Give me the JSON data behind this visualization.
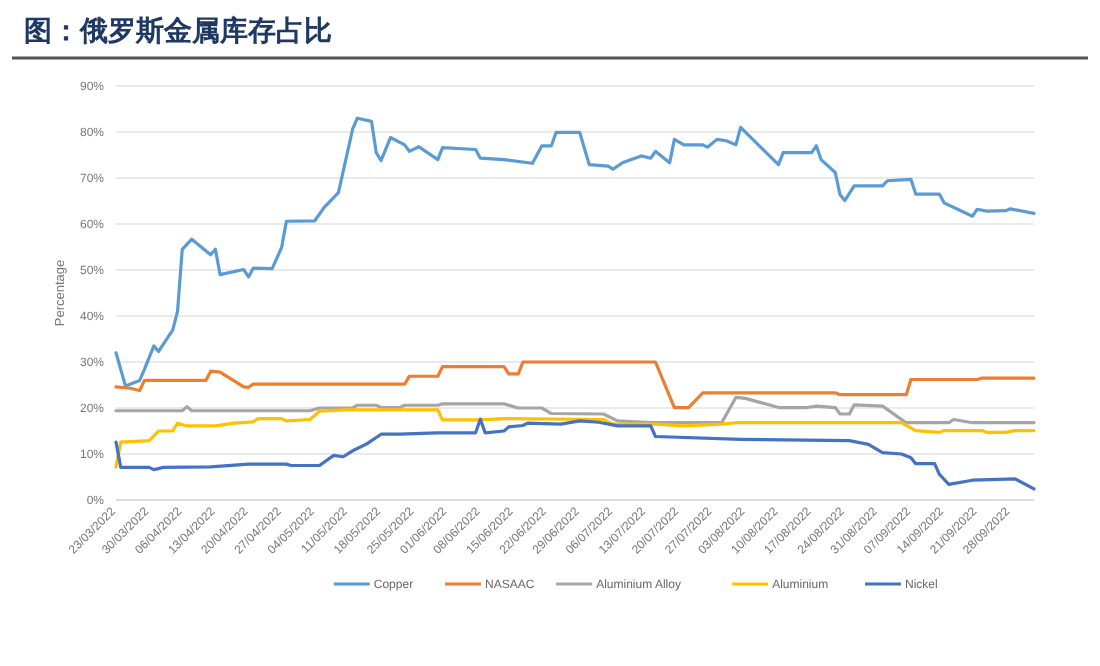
{
  "chart_data": {
    "type": "line",
    "title": "图：俄罗斯金属库存占比",
    "ylabel": "Percentage",
    "xlim": [
      "2022-03-23",
      "2022-10-03"
    ],
    "xticks": [
      {
        "value": "2022-03-23",
        "label": "23/03/2022"
      },
      {
        "value": "2022-03-30",
        "label": "30/03/2022"
      },
      {
        "value": "2022-04-06",
        "label": "06/04/2022"
      },
      {
        "value": "2022-04-13",
        "label": "13/04/2022"
      },
      {
        "value": "2022-04-20",
        "label": "20/04/2022"
      },
      {
        "value": "2022-04-27",
        "label": "27/04/2022"
      },
      {
        "value": "2022-05-04",
        "label": "04/05/2022"
      },
      {
        "value": "2022-05-11",
        "label": "11/05/2022"
      },
      {
        "value": "2022-05-18",
        "label": "18/05/2022"
      },
      {
        "value": "2022-05-25",
        "label": "25/05/2022"
      },
      {
        "value": "2022-06-01",
        "label": "01/06/2022"
      },
      {
        "value": "2022-06-08",
        "label": "08/06/2022"
      },
      {
        "value": "2022-06-15",
        "label": "15/06/2022"
      },
      {
        "value": "2022-06-22",
        "label": "22/06/2022"
      },
      {
        "value": "2022-06-29",
        "label": "29/06/2022"
      },
      {
        "value": "2022-07-06",
        "label": "06/07/2022"
      },
      {
        "value": "2022-07-13",
        "label": "13/07/2022"
      },
      {
        "value": "2022-07-20",
        "label": "20/07/2022"
      },
      {
        "value": "2022-07-27",
        "label": "27/07/2022"
      },
      {
        "value": "2022-08-03",
        "label": "03/08/2022"
      },
      {
        "value": "2022-08-10",
        "label": "10/08/2022"
      },
      {
        "value": "2022-08-17",
        "label": "17/08/2022"
      },
      {
        "value": "2022-08-24",
        "label": "24/08/2022"
      },
      {
        "value": "2022-08-31",
        "label": "31/08/2022"
      },
      {
        "value": "2022-09-07",
        "label": "07/09/2022"
      },
      {
        "value": "2022-09-14",
        "label": "14/09/2022"
      },
      {
        "value": "2022-09-21",
        "label": "21/09/2022"
      },
      {
        "value": "2022-09-28",
        "label": "28/09/2022"
      }
    ],
    "ylim": [
      0,
      90
    ],
    "yticks": [
      {
        "value": 0,
        "label": "0%"
      },
      {
        "value": 10,
        "label": "10%"
      },
      {
        "value": 20,
        "label": "20%"
      },
      {
        "value": 30,
        "label": "30%"
      },
      {
        "value": 40,
        "label": "40%"
      },
      {
        "value": 50,
        "label": "50%"
      },
      {
        "value": 60,
        "label": "60%"
      },
      {
        "value": 70,
        "label": "70%"
      },
      {
        "value": 80,
        "label": "80%"
      },
      {
        "value": 90,
        "label": "90%"
      }
    ],
    "grid": "y",
    "legend": "bottom",
    "marker": "none",
    "line_style": "solid",
    "series": [
      {
        "name": "Copper",
        "color": "#5b9bd5",
        "x": [
          "2022-03-23",
          "2022-03-25",
          "2022-03-28",
          "2022-03-29",
          "2022-03-31",
          "2022-04-01",
          "2022-04-04",
          "2022-04-05",
          "2022-04-06",
          "2022-04-08",
          "2022-04-12",
          "2022-04-13",
          "2022-04-14",
          "2022-04-19",
          "2022-04-20",
          "2022-04-21",
          "2022-04-25",
          "2022-04-27",
          "2022-04-28",
          "2022-05-04",
          "2022-05-06",
          "2022-05-09",
          "2022-05-12",
          "2022-05-13",
          "2022-05-16",
          "2022-05-17",
          "2022-05-18",
          "2022-05-20",
          "2022-05-23",
          "2022-05-24",
          "2022-05-26",
          "2022-05-30",
          "2022-05-31",
          "2022-06-07",
          "2022-06-08",
          "2022-06-13",
          "2022-06-19",
          "2022-06-21",
          "2022-06-23",
          "2022-06-24",
          "2022-06-29",
          "2022-07-01",
          "2022-07-05",
          "2022-07-06",
          "2022-07-08",
          "2022-07-12",
          "2022-07-14",
          "2022-07-15",
          "2022-07-18",
          "2022-07-19",
          "2022-07-21",
          "2022-07-25",
          "2022-07-26",
          "2022-07-28",
          "2022-07-30",
          "2022-08-01",
          "2022-08-02",
          "2022-08-10",
          "2022-08-11",
          "2022-08-17",
          "2022-08-18",
          "2022-08-19",
          "2022-08-22",
          "2022-08-23",
          "2022-08-24",
          "2022-08-26",
          "2022-09-01",
          "2022-09-02",
          "2022-09-07",
          "2022-09-08",
          "2022-09-13",
          "2022-09-14",
          "2022-09-20",
          "2022-09-21",
          "2022-09-23",
          "2022-09-27",
          "2022-09-28",
          "2022-10-03"
        ],
        "values": [
          32,
          24.8,
          26,
          28.4,
          33.5,
          32.3,
          37,
          41,
          54.5,
          56.7,
          53.3,
          54.5,
          49,
          50.1,
          48.5,
          50.4,
          50.3,
          54.9,
          60.6,
          60.7,
          63.6,
          66.8,
          80.6,
          83,
          82.3,
          75.5,
          73.8,
          78.8,
          77.2,
          75.8,
          76.8,
          74,
          76.6,
          76.2,
          74.3,
          74,
          73.2,
          77,
          77,
          79.9,
          79.9,
          72.9,
          72.6,
          71.9,
          73.3,
          74.8,
          74.3,
          75.8,
          73.3,
          78.4,
          77.2,
          77.2,
          76.7,
          78.4,
          78.1,
          77.2,
          81,
          72.9,
          75.5,
          75.5,
          77,
          74,
          71.2,
          66.4,
          65.1,
          68.3,
          68.3,
          69.4,
          69.7,
          66.5,
          66.5,
          64.6,
          61.7,
          63.2,
          62.8,
          62.9,
          63.3,
          62.3
        ]
      },
      {
        "name": "NASAAC",
        "color": "#ed7d31",
        "x": [
          "2022-03-23",
          "2022-03-26",
          "2022-03-28",
          "2022-03-29",
          "2022-04-11",
          "2022-04-12",
          "2022-04-14",
          "2022-04-19",
          "2022-04-20",
          "2022-04-21",
          "2022-05-23",
          "2022-05-24",
          "2022-05-30",
          "2022-05-31",
          "2022-06-13",
          "2022-06-14",
          "2022-06-16",
          "2022-06-17",
          "2022-07-15",
          "2022-07-19",
          "2022-07-22",
          "2022-07-25",
          "2022-08-22",
          "2022-08-23",
          "2022-09-06",
          "2022-09-07",
          "2022-09-21",
          "2022-09-22",
          "2022-10-03"
        ],
        "values": [
          24.6,
          24.3,
          23.8,
          26,
          26,
          28,
          27.8,
          24.6,
          24.5,
          25.2,
          25.2,
          26.9,
          26.9,
          29,
          29,
          27.4,
          27.4,
          30,
          30,
          20.1,
          20.1,
          23.3,
          23.3,
          22.9,
          22.9,
          26.2,
          26.2,
          26.5,
          26.5
        ]
      },
      {
        "name": "Aluminium Alloy",
        "color": "#a5a5a5",
        "x": [
          "2022-03-23",
          "2022-04-06",
          "2022-04-07",
          "2022-04-08",
          "2022-05-03",
          "2022-05-05",
          "2022-05-12",
          "2022-05-13",
          "2022-05-17",
          "2022-05-18",
          "2022-05-22",
          "2022-05-23",
          "2022-05-30",
          "2022-05-31",
          "2022-06-13",
          "2022-06-16",
          "2022-06-21",
          "2022-06-23",
          "2022-07-04",
          "2022-07-07",
          "2022-07-14",
          "2022-07-29",
          "2022-08-01",
          "2022-08-03",
          "2022-08-10",
          "2022-08-16",
          "2022-08-18",
          "2022-08-22",
          "2022-08-23",
          "2022-08-25",
          "2022-08-26",
          "2022-09-01",
          "2022-09-05",
          "2022-09-06",
          "2022-09-15",
          "2022-09-16",
          "2022-09-20",
          "2022-10-03"
        ],
        "values": [
          19.4,
          19.4,
          20.3,
          19.4,
          19.4,
          20,
          20,
          20.6,
          20.6,
          20.1,
          20.1,
          20.6,
          20.6,
          20.9,
          20.9,
          20,
          20,
          18.8,
          18.7,
          17.2,
          16.8,
          16.8,
          22.3,
          22.1,
          20.1,
          20.1,
          20.4,
          20.1,
          18.7,
          18.7,
          20.7,
          20.4,
          17.5,
          16.8,
          16.8,
          17.5,
          16.8,
          16.8
        ]
      },
      {
        "name": "Aluminium",
        "color": "#ffc000",
        "x": [
          "2022-03-23",
          "2022-03-24",
          "2022-03-30",
          "2022-04-01",
          "2022-04-04",
          "2022-04-05",
          "2022-04-07",
          "2022-04-13",
          "2022-04-17",
          "2022-04-21",
          "2022-04-22",
          "2022-04-27",
          "2022-04-28",
          "2022-05-03",
          "2022-05-05",
          "2022-05-10",
          "2022-05-30",
          "2022-05-31",
          "2022-06-08",
          "2022-06-13",
          "2022-07-04",
          "2022-07-06",
          "2022-07-15",
          "2022-07-21",
          "2022-07-29",
          "2022-08-01",
          "2022-09-05",
          "2022-09-08",
          "2022-09-13",
          "2022-09-14",
          "2022-09-22",
          "2022-09-23",
          "2022-09-27",
          "2022-09-29",
          "2022-10-03"
        ],
        "values": [
          7.2,
          12.6,
          12.9,
          15,
          15,
          16.7,
          16.1,
          16.1,
          16.7,
          17,
          17.7,
          17.7,
          17.2,
          17.5,
          19.3,
          19.6,
          19.6,
          17.4,
          17.4,
          17.7,
          17.5,
          16.5,
          16.5,
          16.1,
          16.5,
          16.8,
          16.8,
          15.1,
          14.7,
          15.1,
          15.1,
          14.7,
          14.7,
          15.1,
          15.1
        ]
      },
      {
        "name": "Nickel",
        "color": "#4472c4",
        "x": [
          "2022-03-23",
          "2022-03-24",
          "2022-03-30",
          "2022-03-31",
          "2022-04-02",
          "2022-04-12",
          "2022-04-20",
          "2022-04-28",
          "2022-04-29",
          "2022-05-05",
          "2022-05-08",
          "2022-05-10",
          "2022-05-12",
          "2022-05-15",
          "2022-05-18",
          "2022-05-22",
          "2022-05-30",
          "2022-06-07",
          "2022-06-08",
          "2022-06-09",
          "2022-06-13",
          "2022-06-14",
          "2022-06-17",
          "2022-06-18",
          "2022-06-25",
          "2022-06-29",
          "2022-07-03",
          "2022-07-07",
          "2022-07-14",
          "2022-07-15",
          "2022-08-02",
          "2022-08-25",
          "2022-08-29",
          "2022-09-01",
          "2022-09-05",
          "2022-09-07",
          "2022-09-08",
          "2022-09-12",
          "2022-09-13",
          "2022-09-15",
          "2022-09-20",
          "2022-09-29",
          "2022-10-03"
        ],
        "values": [
          12.6,
          7.1,
          7.1,
          6.6,
          7.1,
          7.2,
          7.8,
          7.8,
          7.5,
          7.5,
          9.7,
          9.4,
          10.7,
          12.2,
          14.3,
          14.3,
          14.6,
          14.6,
          17.6,
          14.6,
          15,
          15.9,
          16.2,
          16.7,
          16.5,
          17.2,
          16.9,
          16.1,
          16.1,
          13.8,
          13.2,
          12.9,
          12.1,
          10.3,
          10,
          9.2,
          7.9,
          7.9,
          5.6,
          3.4,
          4.3,
          4.6,
          2.4
        ]
      }
    ]
  }
}
